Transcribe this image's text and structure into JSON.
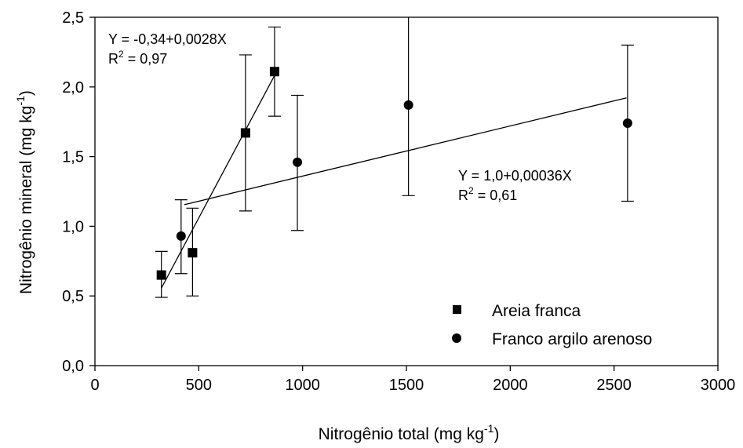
{
  "chart_data": {
    "type": "scatter",
    "xlabel": "Nitrogênio total (mg kg",
    "xlabel_sup": "-1",
    "xlabel_end": ")",
    "ylabel": "Nitrogênio mineral (mg kg",
    "ylabel_sup": "-1",
    "ylabel_end": ")",
    "xlim": [
      0,
      3000
    ],
    "ylim": [
      0,
      2.5
    ],
    "x_ticks": [
      0,
      500,
      1000,
      1500,
      2000,
      2500,
      3000
    ],
    "x_tick_labels": [
      "0",
      "500",
      "1000",
      "1500",
      "2000",
      "2500",
      "3000"
    ],
    "y_ticks": [
      0,
      0.5,
      1.0,
      1.5,
      2.0,
      2.5
    ],
    "y_tick_labels": [
      "0,0",
      "0,5",
      "1,0",
      "1,5",
      "2,0",
      "2,5"
    ],
    "grid": false,
    "legend_position": "bottom-right",
    "series": [
      {
        "name": "Areia franca",
        "marker": "square",
        "x": [
          320,
          470,
          725,
          865
        ],
        "y": [
          0.65,
          0.81,
          1.67,
          2.11
        ],
        "err_low": [
          0.49,
          0.5,
          1.11,
          1.79
        ],
        "err_high": [
          0.82,
          1.13,
          2.23,
          2.43
        ],
        "fit": {
          "equation": "Y = -0,34+0,0028X",
          "r2_label": "R",
          "r2_sup": "2",
          "r2_value": " = 0,97",
          "x_range": [
            320,
            865
          ],
          "intercept": -0.34,
          "slope": 0.0028
        }
      },
      {
        "name": "Franco argilo arenoso",
        "marker": "circle",
        "x": [
          415,
          975,
          1510,
          2565
        ],
        "y": [
          0.93,
          1.46,
          1.87,
          1.74
        ],
        "err_low": [
          0.66,
          0.97,
          1.22,
          1.18
        ],
        "err_high": [
          1.19,
          1.94,
          2.5,
          2.3
        ],
        "fit": {
          "equation": "Y = 1,0+0,00036X",
          "r2_label": "R",
          "r2_sup": "2",
          "r2_value": " = 0,61",
          "x_range": [
            430,
            2560
          ],
          "intercept": 1.0,
          "slope": 0.00036
        }
      }
    ]
  }
}
